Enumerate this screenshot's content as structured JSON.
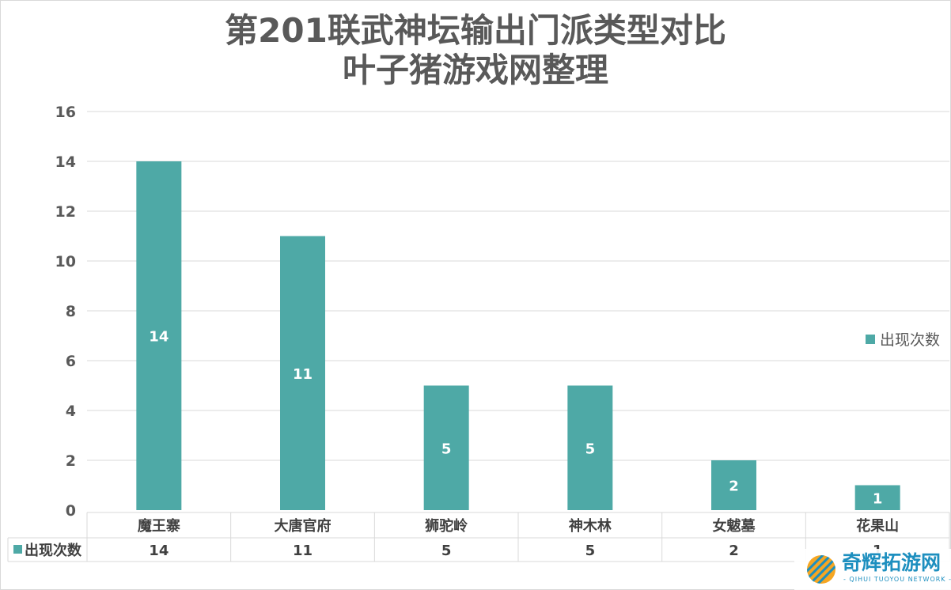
{
  "chart_data": {
    "type": "bar",
    "title_lines": [
      "第201联武神坛输出门派类型对比",
      "叶子猪游戏网整理"
    ],
    "categories": [
      "魔王寨",
      "大唐官府",
      "狮驼岭",
      "神木林",
      "女魃墓",
      "花果山"
    ],
    "series": [
      {
        "name": "出现次数",
        "values": [
          14,
          11,
          5,
          5,
          2,
          1
        ]
      }
    ],
    "ylim": [
      0,
      16
    ],
    "yticks": [
      0,
      2,
      4,
      6,
      8,
      10,
      12,
      14,
      16
    ],
    "grid": true,
    "legend_position": "right",
    "data_table": true,
    "bar_color": "#4ea9a6"
  },
  "watermark": {
    "name": "奇辉拓游网",
    "subtitle": "- QIHUI TUOYOU NETWORK -"
  }
}
